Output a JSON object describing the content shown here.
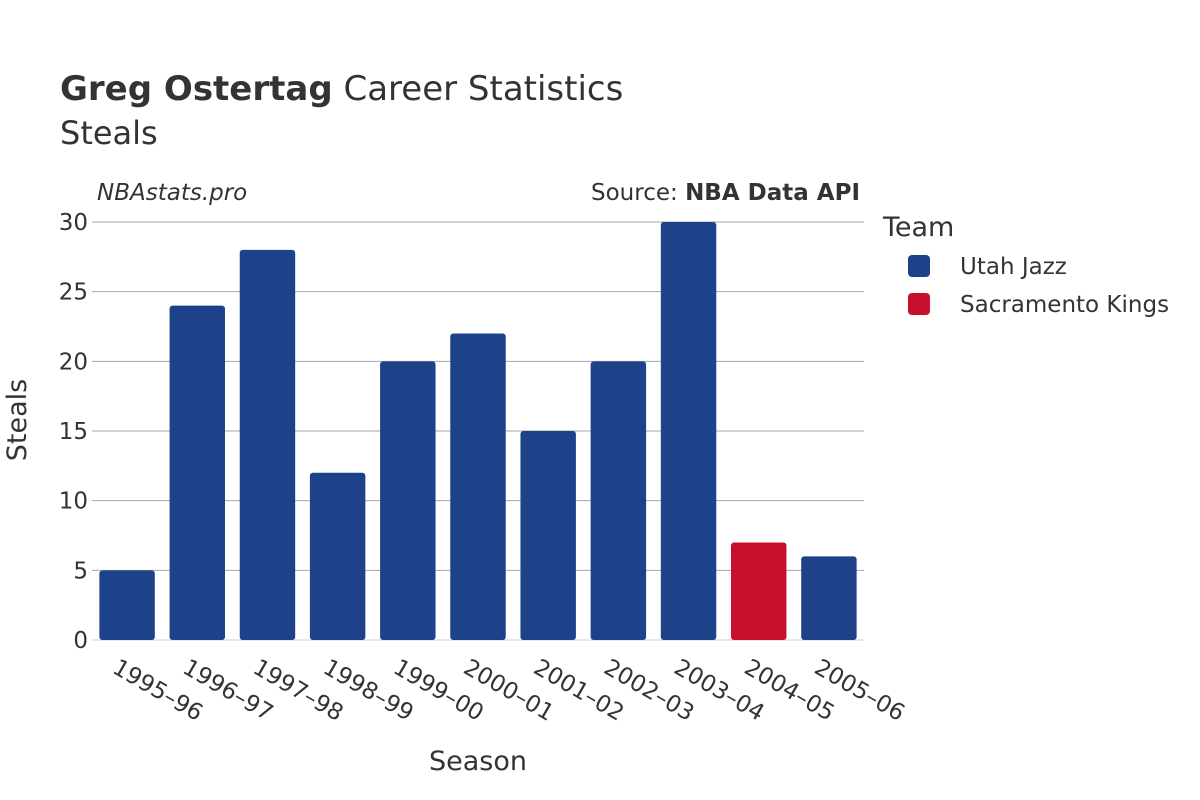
{
  "header": {
    "title_bold": "Greg Ostertag",
    "title_rest": " Career Statistics",
    "subtitle": "Steals"
  },
  "captions": {
    "site": "NBAstats.pro",
    "source_prefix": "Source: ",
    "source_name": "NBA Data API"
  },
  "colors": {
    "utah_jazz": "#1d428a",
    "sacramento_kings": "#c8102e",
    "grid": "#a6a6a6"
  },
  "chart_data": {
    "type": "bar",
    "xlabel": "Season",
    "ylabel": "Steals",
    "ylim": [
      0,
      30
    ],
    "yticks": [
      0,
      5,
      10,
      15,
      20,
      25,
      30
    ],
    "grid": true,
    "legend_position": "right",
    "legend_title": "Team",
    "categories": [
      "1995–96",
      "1996–97",
      "1997–98",
      "1998–99",
      "1999–00",
      "2000–01",
      "2001–02",
      "2002–03",
      "2003–04",
      "2004–05",
      "2005–06"
    ],
    "values": [
      5,
      24,
      28,
      12,
      20,
      22,
      15,
      20,
      30,
      7,
      6
    ],
    "teams": [
      "Utah Jazz",
      "Utah Jazz",
      "Utah Jazz",
      "Utah Jazz",
      "Utah Jazz",
      "Utah Jazz",
      "Utah Jazz",
      "Utah Jazz",
      "Utah Jazz",
      "Sacramento Kings",
      "Utah Jazz"
    ],
    "legend": [
      {
        "name": "Utah Jazz",
        "color": "#1d428a"
      },
      {
        "name": "Sacramento Kings",
        "color": "#c8102e"
      }
    ]
  }
}
